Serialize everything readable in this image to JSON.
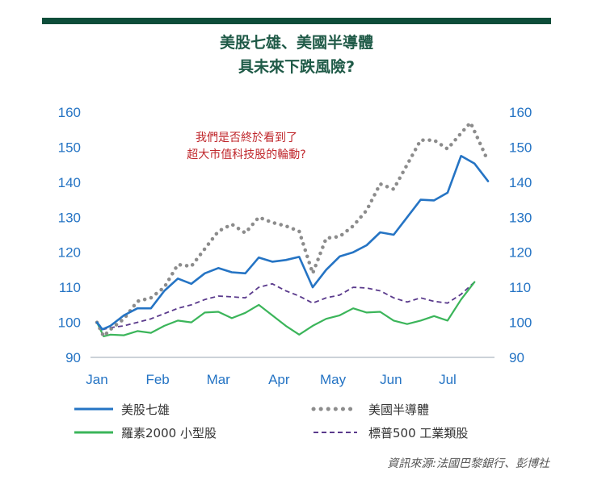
{
  "title_line1": "美股七雄、美國半導體",
  "title_line2": "具未來下跌風險?",
  "annotation_line1": "我們是否終於看到了",
  "annotation_line2": "超大市值科技股的輪動?",
  "source": "資訊來源:法國巴黎銀行、彭博社",
  "colors": {
    "mag7": "#2574c4",
    "semis": "#8c8c8c",
    "russell": "#3bb55a",
    "industrials": "#5a3a8c",
    "axis": "#2574c4",
    "topbar": "#0d4d3a"
  },
  "chart_data": {
    "type": "line",
    "x": [
      0,
      0.3,
      0.5,
      1,
      1.5,
      2,
      2.5,
      3,
      3.5,
      4,
      4.5,
      5,
      5.5,
      6,
      6.5,
      7,
      7.5,
      8,
      8.5,
      9,
      9.5,
      10,
      10.5,
      11,
      11.5,
      12,
      12.5,
      13,
      13.5,
      14,
      14.5,
      15,
      15.5,
      16,
      16.5,
      17,
      17.5,
      18,
      18.5,
      19,
      19.5,
      20,
      20.5,
      21,
      21.5,
      22,
      22.5,
      23,
      23.5,
      24,
      24.5,
      25,
      25.5,
      26,
      26.5,
      27,
      27.5,
      28,
      28.5,
      29,
      29.5,
      30,
      30.5,
      31,
      31.5,
      32,
      32.5,
      33
    ],
    "x_tick_labels": [
      "Jan",
      "Feb",
      "Mar",
      "Apr",
      "May",
      "Jun",
      "Jul"
    ],
    "x_tick_positions": [
      0,
      4.5,
      9,
      13.5,
      17.5,
      21.8,
      26
    ],
    "ylim": [
      90,
      160
    ],
    "y_ticks": [
      90,
      100,
      110,
      120,
      130,
      140,
      150,
      160
    ],
    "series": [
      {
        "name": "美股七雄",
        "key": "mag7",
        "style": "solid",
        "points": [
          [
            0,
            100
          ],
          [
            0.4,
            98
          ],
          [
            1,
            99
          ],
          [
            2,
            102
          ],
          [
            3,
            104
          ],
          [
            4,
            104
          ],
          [
            5,
            109
          ],
          [
            6,
            112.5
          ],
          [
            7,
            111
          ],
          [
            8,
            114
          ],
          [
            9,
            115.5
          ],
          [
            10,
            114.3
          ],
          [
            11,
            114
          ],
          [
            12,
            118.5
          ],
          [
            13,
            117.3
          ],
          [
            14,
            117.8
          ],
          [
            15,
            118.7
          ],
          [
            16,
            110
          ],
          [
            17,
            115
          ],
          [
            18,
            118.8
          ],
          [
            19,
            120
          ],
          [
            20,
            122
          ],
          [
            21,
            125.7
          ],
          [
            22,
            125
          ],
          [
            23,
            130
          ],
          [
            24,
            135
          ],
          [
            25,
            134.8
          ],
          [
            26,
            137
          ],
          [
            27,
            147.5
          ],
          [
            28,
            145.3
          ],
          [
            29,
            140.3
          ]
        ]
      },
      {
        "name": "美國半導體",
        "key": "semis",
        "style": "dotted",
        "points": [
          [
            0,
            100
          ],
          [
            0.5,
            96
          ],
          [
            1,
            98
          ],
          [
            2,
            101
          ],
          [
            3,
            106
          ],
          [
            4,
            107
          ],
          [
            5,
            110
          ],
          [
            6,
            116.5
          ],
          [
            7,
            116
          ],
          [
            8,
            121
          ],
          [
            9,
            126
          ],
          [
            10,
            128
          ],
          [
            11,
            125.5
          ],
          [
            12,
            130
          ],
          [
            13,
            128.5
          ],
          [
            14,
            127.5
          ],
          [
            15,
            126
          ],
          [
            16,
            114
          ],
          [
            17,
            124
          ],
          [
            18,
            124.5
          ],
          [
            19,
            127.5
          ],
          [
            20,
            132
          ],
          [
            21,
            139.5
          ],
          [
            22,
            138
          ],
          [
            23,
            145
          ],
          [
            24,
            152
          ],
          [
            25,
            152
          ],
          [
            26,
            149.5
          ],
          [
            27,
            154
          ],
          [
            27.7,
            157
          ],
          [
            28.3,
            152
          ],
          [
            29,
            146
          ]
        ]
      },
      {
        "name": "羅素2000 小型股",
        "key": "russell",
        "style": "solid",
        "points": [
          [
            0,
            100
          ],
          [
            0.5,
            96
          ],
          [
            1,
            96.5
          ],
          [
            2,
            96.3
          ],
          [
            3,
            97.5
          ],
          [
            4,
            97
          ],
          [
            5,
            99
          ],
          [
            6,
            100.5
          ],
          [
            7,
            100
          ],
          [
            8,
            102.8
          ],
          [
            9,
            103
          ],
          [
            10,
            101.2
          ],
          [
            11,
            102.7
          ],
          [
            12,
            105
          ],
          [
            13,
            102
          ],
          [
            14,
            99
          ],
          [
            15,
            96.5
          ],
          [
            16,
            99
          ],
          [
            17,
            101
          ],
          [
            18,
            102
          ],
          [
            19,
            104
          ],
          [
            20,
            102.8
          ],
          [
            21,
            103
          ],
          [
            22,
            100.5
          ],
          [
            23,
            99.5
          ],
          [
            24,
            100.5
          ],
          [
            25,
            101.8
          ],
          [
            26,
            100.5
          ],
          [
            27,
            106.5
          ],
          [
            28,
            111.5
          ]
        ]
      },
      {
        "name": "標普500 工業類股",
        "key": "industrials",
        "style": "dashed",
        "points": [
          [
            0,
            100
          ],
          [
            0.5,
            98
          ],
          [
            1,
            98.5
          ],
          [
            2,
            99
          ],
          [
            3,
            100
          ],
          [
            4,
            101
          ],
          [
            5,
            102.5
          ],
          [
            6,
            104
          ],
          [
            7,
            105
          ],
          [
            8,
            106.5
          ],
          [
            9,
            107.5
          ],
          [
            10,
            107.3
          ],
          [
            11,
            107
          ],
          [
            12,
            110
          ],
          [
            13,
            111
          ],
          [
            14,
            109
          ],
          [
            15,
            107.5
          ],
          [
            16,
            105.5
          ],
          [
            17,
            107
          ],
          [
            18,
            107.8
          ],
          [
            19,
            110
          ],
          [
            20,
            109.8
          ],
          [
            21,
            109
          ],
          [
            22,
            107
          ],
          [
            23,
            105.8
          ],
          [
            24,
            107
          ],
          [
            25,
            106
          ],
          [
            26,
            105.5
          ],
          [
            27,
            108
          ],
          [
            28,
            111.5
          ]
        ]
      }
    ]
  }
}
